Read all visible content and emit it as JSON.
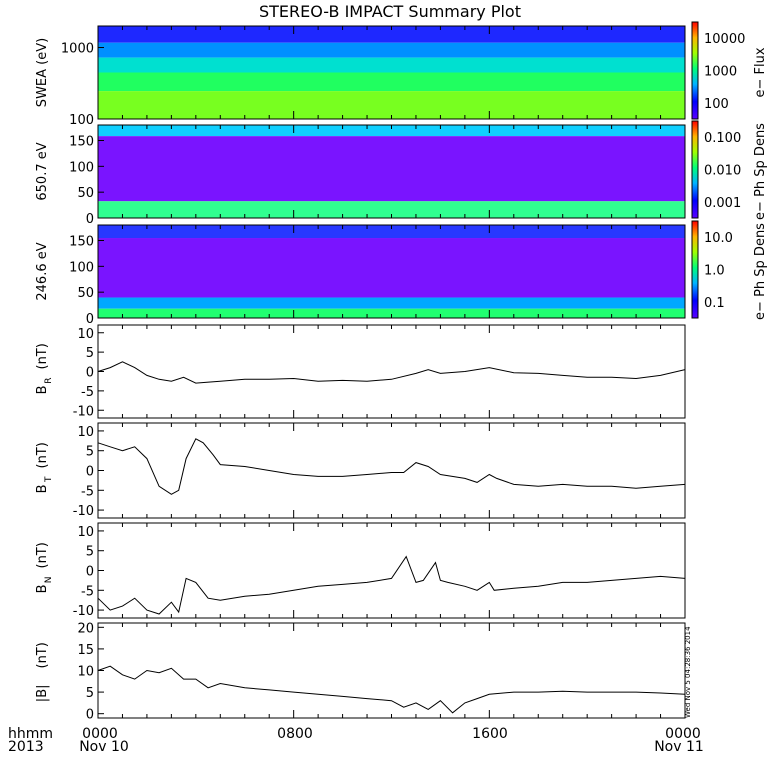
{
  "title": "STEREO-B IMPACT Summary Plot",
  "x_axis": {
    "tick_labels": [
      "0000",
      "0800",
      "1600",
      "0000"
    ],
    "date_labels": [
      "Nov 10",
      "Nov 11"
    ],
    "left_labels": [
      "hhmm",
      "2013"
    ]
  },
  "timestamp": "Wed Nov 5 04:28:36 2014",
  "chart_data": [
    {
      "type": "heatmap",
      "ylabel": "SWEA (eV)",
      "yscale": "log",
      "ylim": [
        100,
        2000
      ],
      "yticks": [
        "1000",
        "100"
      ],
      "colorbar": {
        "label": "e− Flux",
        "ticks": [
          "10000",
          "1000",
          "100"
        ]
      }
    },
    {
      "type": "heatmap",
      "ylabel": "650.7 eV",
      "ylim": [
        0,
        180
      ],
      "yticks": [
        "150",
        "100",
        "50",
        "0"
      ],
      "colorbar": {
        "label": "e− Ph Sp Dens",
        "ticks": [
          "0.100",
          "0.010",
          "0.001"
        ]
      }
    },
    {
      "type": "heatmap",
      "ylabel": "246.6 eV",
      "ylim": [
        0,
        180
      ],
      "yticks": [
        "150",
        "100",
        "50",
        "0"
      ],
      "colorbar": {
        "label": "e− Ph Sp Dens",
        "ticks": [
          "10.0",
          "1.0",
          "0.1"
        ]
      }
    },
    {
      "type": "line",
      "ylabel_main": "B",
      "ylabel_sub": "R",
      "ylabel_unit": "(nT)",
      "ylim": [
        -12,
        12
      ],
      "yticks": [
        "10",
        "5",
        "0",
        "-5",
        "-10"
      ],
      "x": [
        0,
        0.5,
        1,
        1.5,
        2,
        2.5,
        3,
        3.5,
        4,
        5,
        6,
        7,
        8,
        9,
        10,
        11,
        12,
        13,
        13.5,
        14,
        15,
        16,
        17,
        18,
        19,
        20,
        21,
        22,
        23,
        24
      ],
      "values": [
        0,
        1,
        2.5,
        1,
        -1,
        -2,
        -2.5,
        -1.5,
        -3,
        -2.5,
        -2,
        -2,
        -1.8,
        -2.5,
        -2.3,
        -2.5,
        -2,
        -0.5,
        0.5,
        -0.5,
        0,
        1,
        -0.3,
        -0.5,
        -1,
        -1.5,
        -1.5,
        -1.8,
        -1,
        0.5
      ]
    },
    {
      "type": "line",
      "ylabel_main": "B",
      "ylabel_sub": "T",
      "ylabel_unit": "(nT)",
      "ylim": [
        -12,
        12
      ],
      "yticks": [
        "10",
        "5",
        "0",
        "-5",
        "-10"
      ],
      "x": [
        0,
        0.5,
        1,
        1.5,
        2,
        2.5,
        3,
        3.3,
        3.6,
        4,
        4.3,
        4.7,
        5,
        6,
        7,
        8,
        9,
        10,
        11,
        12,
        12.5,
        13,
        13.5,
        14,
        15,
        15.5,
        16,
        16.3,
        17,
        18,
        19,
        20,
        21,
        22,
        23,
        24
      ],
      "values": [
        7,
        6,
        5,
        6,
        3,
        -4,
        -6,
        -5,
        3,
        8,
        7,
        4,
        1.5,
        1,
        0,
        -1,
        -1.5,
        -1.5,
        -1,
        -0.5,
        -0.5,
        2,
        1,
        -1,
        -2,
        -3,
        -1,
        -2,
        -3.5,
        -4,
        -3.5,
        -4,
        -4,
        -4.5,
        -4,
        -3.5
      ]
    },
    {
      "type": "line",
      "ylabel_main": "B",
      "ylabel_sub": "N",
      "ylabel_unit": "(nT)",
      "ylim": [
        -12,
        12
      ],
      "yticks": [
        "10",
        "5",
        "0",
        "-5",
        "-10"
      ],
      "x": [
        0,
        0.5,
        1,
        1.5,
        2,
        2.5,
        3,
        3.3,
        3.6,
        4,
        4.5,
        5,
        6,
        7,
        8,
        9,
        10,
        11,
        12,
        12.6,
        13,
        13.3,
        13.8,
        14,
        14.3,
        15,
        15.5,
        16,
        16.2,
        17,
        18,
        19,
        20,
        21,
        22,
        23,
        24
      ],
      "values": [
        -7,
        -10,
        -9,
        -7,
        -10,
        -11,
        -8,
        -10.5,
        -2,
        -3,
        -7,
        -7.5,
        -6.5,
        -6,
        -5,
        -4,
        -3.5,
        -3,
        -2,
        3.5,
        -3,
        -2.5,
        2,
        -2.5,
        -3,
        -4,
        -5,
        -3,
        -5,
        -4.5,
        -4,
        -3,
        -3,
        -2.5,
        -2,
        -1.5,
        -2
      ]
    },
    {
      "type": "line",
      "ylabel_main": "|B|",
      "ylabel_sub": "",
      "ylabel_unit": "(nT)",
      "ylim": [
        -1,
        21
      ],
      "yticks": [
        "20",
        "15",
        "10",
        "5",
        "0"
      ],
      "x": [
        0,
        0.5,
        1,
        1.5,
        2,
        2.5,
        3,
        3.5,
        4,
        4.5,
        5,
        6,
        7,
        8,
        9,
        10,
        11,
        12,
        12.5,
        13,
        13.5,
        14,
        14.5,
        15,
        15.5,
        16,
        17,
        18,
        19,
        20,
        21,
        22,
        23,
        24
      ],
      "values": [
        10,
        11,
        9,
        8,
        10,
        9.5,
        10.5,
        8,
        8,
        6,
        7,
        6,
        5.5,
        5,
        4.5,
        4,
        3.5,
        3,
        1.5,
        2.5,
        1,
        3,
        0.2,
        2.5,
        3.5,
        4.5,
        5,
        5,
        5.2,
        5,
        5,
        5,
        4.8,
        4.5
      ]
    }
  ]
}
